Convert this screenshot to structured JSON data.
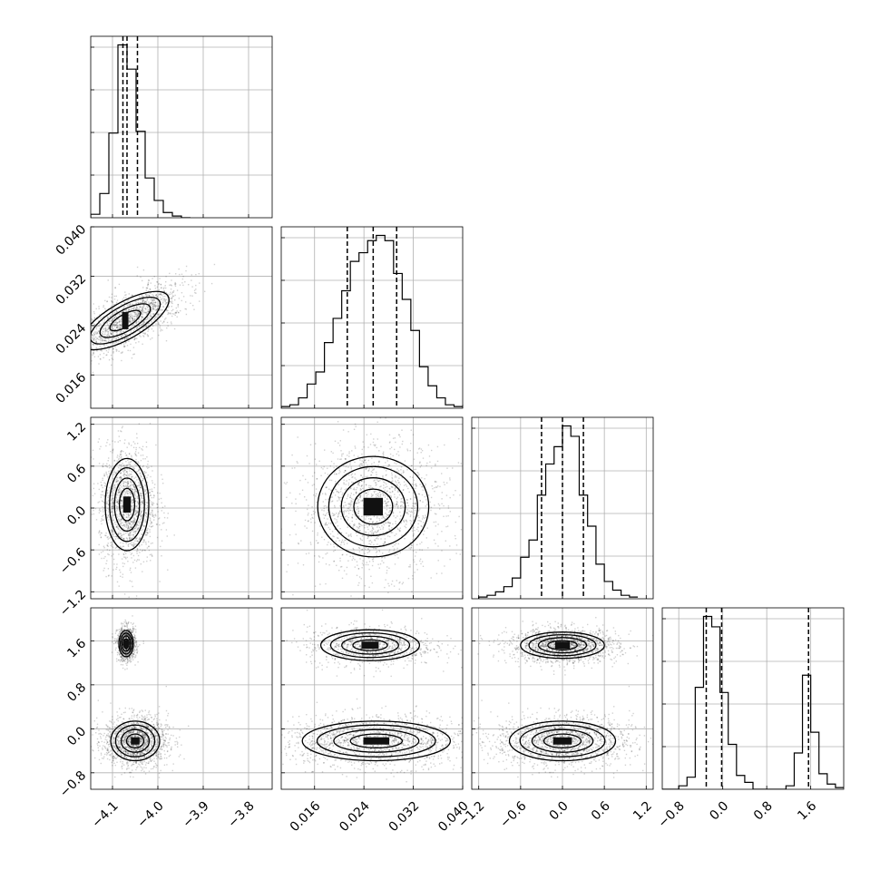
{
  "chart_data": {
    "type": "corner",
    "grid": true,
    "colors": {
      "points": "#000000",
      "lines": "#000000",
      "grid": "#b0b0b0"
    },
    "parameters": [
      {
        "range": [
          -4.148,
          -3.748
        ],
        "ticks": [
          -4.1,
          -4.0,
          -3.9,
          -3.8
        ],
        "tick_labels": [
          "−4.1",
          "−4.0",
          "−3.9",
          "−3.8"
        ],
        "quantiles": [
          -4.077,
          -4.068,
          -4.045
        ]
      },
      {
        "range": [
          0.0106,
          0.04
        ],
        "ticks": [
          0.016,
          0.024,
          0.032,
          0.04
        ],
        "tick_labels": [
          "0.016",
          "0.024",
          "0.032",
          "0.040"
        ],
        "quantiles": [
          0.0213,
          0.0255,
          0.0293
        ]
      },
      {
        "range": [
          -1.3,
          1.3
        ],
        "ticks": [
          -1.2,
          -0.6,
          0.0,
          0.6,
          1.2
        ],
        "tick_labels": [
          "−1.2",
          "−0.6",
          "0.0",
          "0.6",
          "1.2"
        ],
        "quantiles": [
          -0.3,
          0.0,
          0.3
        ]
      },
      {
        "range": [
          -1.1,
          2.2
        ],
        "ticks": [
          -0.8,
          0.0,
          0.8,
          1.6
        ],
        "tick_labels": [
          "−0.8",
          "0.0",
          "0.8",
          "1.6"
        ],
        "quantiles": [
          -0.3,
          -0.02,
          1.56
        ]
      }
    ],
    "histograms": [
      {
        "bins": [
          -4.148,
          -4.128,
          -4.108,
          -4.088,
          -4.068,
          -4.048,
          -4.028,
          -4.008,
          -3.988,
          -3.968,
          -3.948,
          -3.928
        ],
        "counts": [
          0.02,
          0.14,
          0.49,
          1.0,
          0.86,
          0.5,
          0.23,
          0.1,
          0.03,
          0.01,
          0.0
        ],
        "ymax": 1.05
      },
      {
        "bins": [
          0.0106,
          0.012,
          0.0134,
          0.0148,
          0.0162,
          0.0176,
          0.019,
          0.0204,
          0.0218,
          0.0232,
          0.0246,
          0.026,
          0.0274,
          0.0288,
          0.0302,
          0.0316,
          0.033,
          0.0344,
          0.0358,
          0.0372,
          0.0386,
          0.04
        ],
        "counts": [
          0.01,
          0.02,
          0.06,
          0.14,
          0.21,
          0.38,
          0.52,
          0.68,
          0.85,
          0.9,
          0.97,
          1.0,
          0.97,
          0.78,
          0.63,
          0.45,
          0.24,
          0.13,
          0.06,
          0.02,
          0.01
        ],
        "ymax": 1.05
      },
      {
        "bins": [
          -1.2,
          -1.08,
          -0.96,
          -0.84,
          -0.72,
          -0.6,
          -0.48,
          -0.36,
          -0.24,
          -0.12,
          0.0,
          0.12,
          0.24,
          0.36,
          0.48,
          0.6,
          0.72,
          0.84,
          0.96,
          1.08
        ],
        "counts": [
          0.01,
          0.02,
          0.04,
          0.07,
          0.12,
          0.24,
          0.34,
          0.6,
          0.78,
          0.88,
          1.0,
          0.94,
          0.6,
          0.42,
          0.2,
          0.1,
          0.05,
          0.02,
          0.01
        ],
        "ymax": 1.05
      },
      {
        "bins": [
          -1.1,
          -0.95,
          -0.8,
          -0.65,
          -0.5,
          -0.35,
          -0.2,
          -0.05,
          0.1,
          0.25,
          0.4,
          0.55,
          0.7,
          0.85,
          1.0,
          1.15,
          1.3,
          1.45,
          1.6,
          1.75,
          1.9,
          2.05,
          2.2
        ],
        "counts": [
          0.0,
          0.0,
          0.02,
          0.07,
          0.59,
          1.0,
          0.94,
          0.56,
          0.26,
          0.08,
          0.04,
          0.0,
          0.0,
          0.0,
          0.0,
          0.02,
          0.21,
          0.66,
          0.33,
          0.09,
          0.03,
          0.01
        ],
        "ymax": 1.05
      }
    ],
    "pairs": [
      {
        "x": 0,
        "y": 1,
        "modes": [
          {
            "cx": -4.072,
            "cy": 0.0248,
            "sx": 0.02,
            "sy": 0.004,
            "rot": -1.05
          }
        ]
      },
      {
        "x": 0,
        "y": 2,
        "modes": [
          {
            "cx": -4.068,
            "cy": 0.05,
            "sx": 0.024,
            "sy": 0.33,
            "rot": 0.0
          }
        ]
      },
      {
        "x": 1,
        "y": 2,
        "modes": [
          {
            "cx": 0.0255,
            "cy": 0.02,
            "sx": 0.0045,
            "sy": 0.36,
            "rot": 0.0
          }
        ]
      },
      {
        "x": 0,
        "y": 3,
        "modes": [
          {
            "cx": -4.07,
            "cy": 1.55,
            "sx": 0.008,
            "sy": 0.12,
            "rot": 0.0
          },
          {
            "cx": -4.05,
            "cy": -0.22,
            "sx": 0.027,
            "sy": 0.18,
            "rot": 0.0
          }
        ]
      },
      {
        "x": 1,
        "y": 3,
        "modes": [
          {
            "cx": 0.025,
            "cy": 1.52,
            "sx": 0.004,
            "sy": 0.14,
            "rot": 0.0
          },
          {
            "cx": 0.026,
            "cy": -0.22,
            "sx": 0.006,
            "sy": 0.18,
            "rot": 0.0
          }
        ]
      },
      {
        "x": 2,
        "y": 3,
        "modes": [
          {
            "cx": 0.0,
            "cy": 1.52,
            "sx": 0.3,
            "sy": 0.12,
            "rot": 0.0
          },
          {
            "cx": 0.0,
            "cy": -0.22,
            "sx": 0.38,
            "sy": 0.18,
            "rot": 0.0
          }
        ]
      }
    ]
  }
}
